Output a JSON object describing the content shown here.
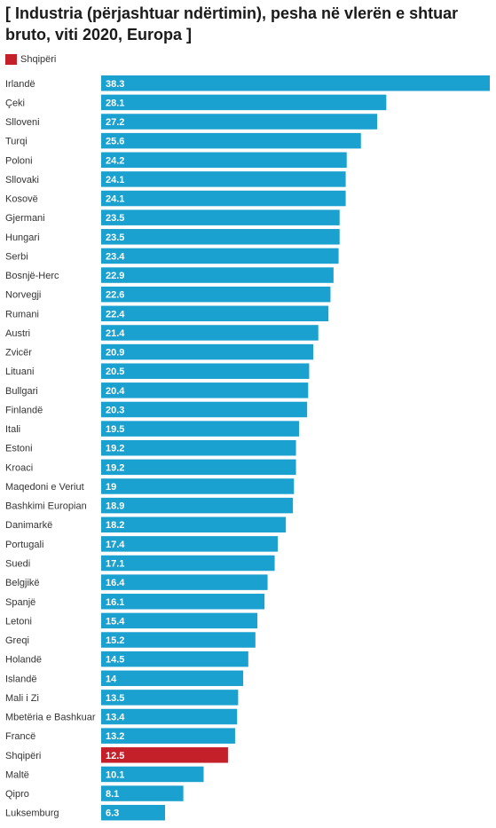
{
  "chart_data": {
    "type": "bar",
    "orientation": "horizontal",
    "title": "[ Industria (përjashtuar ndërtimin), pesha në vlerën e shtuar bruto, viti 2020, Europa ]",
    "legend": [
      {
        "name": "Shqipëri",
        "color": "#c4202a"
      }
    ],
    "legend_position": "top-left",
    "grid": false,
    "xlim": [
      0,
      38.3
    ],
    "bar_color": "#1ba1cf",
    "highlight_color": "#c4202a",
    "highlight_category": "Shqipëri",
    "categories": [
      "Irlandë",
      "Çeki",
      "Slloveni",
      "Turqi",
      "Poloni",
      "Sllovaki",
      "Kosovë",
      "Gjermani",
      "Hungari",
      "Serbi",
      "Bosnjë-Herc",
      "Norvegji",
      "Rumani",
      "Austri",
      "Zvicër",
      "Lituani",
      "Bullgari",
      "Finlandë",
      "Itali",
      "Estoni",
      "Kroaci",
      "Maqedoni e Veriut",
      "Bashkimi Europian",
      "Danimarkë",
      "Portugali",
      "Suedi",
      "Belgjikë",
      "Spanjë",
      "Letoni",
      "Greqi",
      "Holandë",
      "Islandë",
      "Mali i Zi",
      "Mbetëria e Bashkuar",
      "Francë",
      "Shqipëri",
      "Maltë",
      "Qipro",
      "Luksemburg"
    ],
    "values": [
      38.3,
      28.1,
      27.2,
      25.6,
      24.2,
      24.1,
      24.1,
      23.5,
      23.5,
      23.4,
      22.9,
      22.6,
      22.4,
      21.4,
      20.9,
      20.5,
      20.4,
      20.3,
      19.5,
      19.2,
      19.2,
      19,
      18.9,
      18.2,
      17.4,
      17.1,
      16.4,
      16.1,
      15.4,
      15.2,
      14.5,
      14,
      13.5,
      13.4,
      13.2,
      12.5,
      10.1,
      8.1,
      6.3
    ],
    "value_labels": [
      "38.3",
      "28.1",
      "27.2",
      "25.6",
      "24.2",
      "24.1",
      "24.1",
      "23.5",
      "23.5",
      "23.4",
      "22.9",
      "22.6",
      "22.4",
      "21.4",
      "20.9",
      "20.5",
      "20.4",
      "20.3",
      "19.5",
      "19.2",
      "19.2",
      "19",
      "18.9",
      "18.2",
      "17.4",
      "17.1",
      "16.4",
      "16.1",
      "15.4",
      "15.2",
      "14.5",
      "14",
      "13.5",
      "13.4",
      "13.2",
      "12.5",
      "10.1",
      "8.1",
      "6.3"
    ]
  }
}
